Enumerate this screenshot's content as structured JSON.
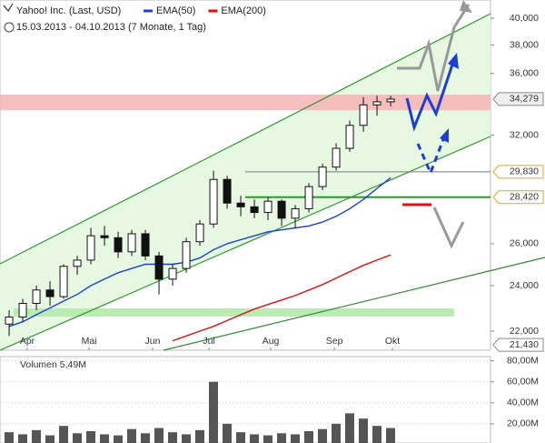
{
  "chart_data": [
    {
      "type": "candlestick",
      "title": "Yahoo! Inc. (Last, USD)",
      "subtitle": "15.03.2013 - 04.10.2013 (7 Monate, 1 Tag)",
      "open": [
        22300,
        22600,
        23200,
        23800,
        23500,
        24900,
        25200,
        26400,
        26300,
        25600,
        26500,
        25400,
        24300,
        24800,
        26100,
        27000,
        29400,
        28100,
        27900,
        27600,
        28200,
        27300,
        27800,
        29000,
        30100,
        31200,
        32600,
        33900,
        34100
      ],
      "high": [
        22900,
        23400,
        24000,
        24200,
        25000,
        25400,
        26800,
        26900,
        26600,
        26700,
        26700,
        25600,
        25000,
        26300,
        27200,
        29900,
        29600,
        28500,
        28300,
        28400,
        28300,
        28000,
        29200,
        30300,
        31500,
        32900,
        34400,
        34500,
        34500
      ],
      "low": [
        21800,
        22400,
        22900,
        23100,
        23400,
        24500,
        25000,
        25900,
        25300,
        25400,
        25200,
        23600,
        24000,
        24600,
        25900,
        26800,
        27800,
        27400,
        27300,
        27200,
        26900,
        26800,
        27600,
        28800,
        29900,
        31000,
        32200,
        33200,
        33800
      ],
      "close": [
        22600,
        23200,
        23800,
        23500,
        24900,
        25200,
        26400,
        26300,
        25600,
        26500,
        25400,
        24300,
        24800,
        26100,
        27000,
        29400,
        28100,
        27900,
        27600,
        28200,
        27300,
        27800,
        29000,
        30100,
        31200,
        32600,
        33900,
        34100,
        34279
      ],
      "series": [
        {
          "name": "EMA(50)",
          "color": "#1a3fd6",
          "values": [
            22200,
            22400,
            22700,
            23000,
            23300,
            23600,
            24000,
            24300,
            24600,
            24800,
            25000,
            25000,
            25000,
            25100,
            25300,
            25700,
            26000,
            26200,
            26400,
            26600,
            26700,
            26800,
            26900,
            27100,
            27400,
            27800,
            28300,
            28900,
            29500
          ]
        },
        {
          "name": "EMA(200)",
          "color": "#e01010",
          "values": [
            null,
            null,
            null,
            null,
            null,
            null,
            null,
            null,
            null,
            null,
            null,
            null,
            21600,
            21800,
            22000,
            22200,
            22450,
            22700,
            22950,
            23150,
            23350,
            23550,
            23800,
            24050,
            24350,
            24650,
            24950,
            25200,
            25450
          ]
        }
      ],
      "xlim": [
        -0.67,
        35.33
      ],
      "xticks": [
        {
          "value": 1.33,
          "label": "Apr"
        },
        {
          "value": 5.87,
          "label": "Mai"
        },
        {
          "value": 10.53,
          "label": "Jun"
        },
        {
          "value": 14.67,
          "label": "Jul"
        },
        {
          "value": 19.2,
          "label": "Aug"
        },
        {
          "value": 23.87,
          "label": "Sep"
        },
        {
          "value": 28.13,
          "label": "Okt"
        }
      ],
      "ylim": [
        21250,
        40850
      ],
      "log": true,
      "yticks": [
        {
          "value": 22000,
          "label": "22,000"
        },
        {
          "value": 24000,
          "label": "24,000"
        },
        {
          "value": 26000,
          "label": "26,000"
        },
        {
          "value": 32000,
          "label": "32,000"
        },
        {
          "value": 36000,
          "label": "36,000"
        },
        {
          "value": 38000,
          "label": "38,000"
        },
        {
          "value": 40000,
          "label": "40,000"
        }
      ],
      "levels": [
        {
          "value": 34279,
          "label": "34,279"
        },
        {
          "value": 29830,
          "label": "29,830"
        },
        {
          "value": 28420,
          "label": "28,420"
        },
        {
          "value": 21430,
          "label": "21,430"
        }
      ]
    },
    {
      "type": "bar",
      "title": "Volumen 5,49M",
      "color": "#555555",
      "values": [
        12,
        10,
        14,
        9,
        18,
        11,
        13,
        10,
        9,
        15,
        11,
        16,
        12,
        10,
        14,
        60,
        20,
        12,
        10,
        9,
        11,
        10,
        13,
        15,
        20,
        30,
        25,
        18,
        16
      ],
      "ylim": [
        0,
        84
      ],
      "yticks": [
        {
          "value": 20,
          "label": "20,00M"
        },
        {
          "value": 40,
          "label": "40,00M"
        },
        {
          "value": 60,
          "label": "60,00M"
        },
        {
          "value": 80,
          "label": "80,00M"
        }
      ]
    }
  ]
}
